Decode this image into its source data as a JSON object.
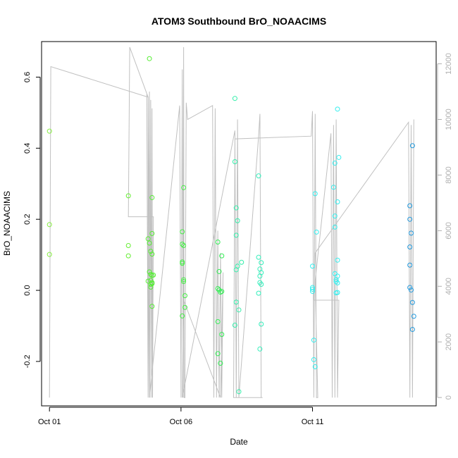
{
  "chart_data": {
    "type": "scatter",
    "title": "ATOM3 Southbound BrO_NOAACIMS",
    "xlabel": "Date",
    "ylabel": "BrO_NOAACIMS",
    "xlim": [
      -0.3,
      14.7
    ],
    "ylim": [
      -0.325,
      0.7
    ],
    "y_ticks": [
      -0.2,
      0.0,
      0.2,
      0.4,
      0.6
    ],
    "y_tick_labels": [
      "-0.2",
      "0.0",
      "0.2",
      "0.4",
      "0.6"
    ],
    "x_ticks": [
      0,
      5,
      10
    ],
    "x_tick_labels": [
      "Oct 01",
      "Oct 06",
      "Oct 11"
    ],
    "right_axis": {
      "ylim": [
        -300,
        12800
      ],
      "ticks": [
        0,
        2000,
        4000,
        6000,
        8000,
        10000,
        12000
      ],
      "tick_labels": [
        "0",
        "2000",
        "4000",
        "6000",
        "8000",
        "10000",
        "12000"
      ],
      "color": "#b0b0b0"
    },
    "points": [
      {
        "x": 0.0,
        "y": 0.448,
        "color": "#88ee44"
      },
      {
        "x": 0.0,
        "y": 0.185,
        "color": "#88ee44"
      },
      {
        "x": 0.0,
        "y": 0.101,
        "color": "#88ee44"
      },
      {
        "x": 3.0,
        "y": 0.266,
        "color": "#66ee33"
      },
      {
        "x": 3.0,
        "y": 0.126,
        "color": "#66ee33"
      },
      {
        "x": 3.0,
        "y": 0.097,
        "color": "#66ee33"
      },
      {
        "x": 3.8,
        "y": 0.652,
        "color": "#55ee33"
      },
      {
        "x": 3.75,
        "y": 0.145,
        "color": "#55ee33"
      },
      {
        "x": 3.8,
        "y": 0.133,
        "color": "#55ee33"
      },
      {
        "x": 3.85,
        "y": 0.11,
        "color": "#55ee33"
      },
      {
        "x": 3.9,
        "y": 0.102,
        "color": "#55ee33"
      },
      {
        "x": 3.9,
        "y": 0.261,
        "color": "#55ee33"
      },
      {
        "x": 3.9,
        "y": 0.16,
        "color": "#55ee33"
      },
      {
        "x": 3.8,
        "y": 0.052,
        "color": "#55ee33"
      },
      {
        "x": 3.85,
        "y": 0.045,
        "color": "#55ee33"
      },
      {
        "x": 3.9,
        "y": 0.042,
        "color": "#55ee33"
      },
      {
        "x": 3.95,
        "y": 0.043,
        "color": "#55ee33"
      },
      {
        "x": 3.75,
        "y": 0.026,
        "color": "#55ee33"
      },
      {
        "x": 3.85,
        "y": 0.028,
        "color": "#55ee33"
      },
      {
        "x": 3.9,
        "y": 0.022,
        "color": "#55ee33"
      },
      {
        "x": 3.85,
        "y": 0.017,
        "color": "#55ee33"
      },
      {
        "x": 3.9,
        "y": 0.019,
        "color": "#55ee33"
      },
      {
        "x": 3.85,
        "y": 0.009,
        "color": "#55ee33"
      },
      {
        "x": 3.9,
        "y": -0.045,
        "color": "#55ee33"
      },
      {
        "x": 5.1,
        "y": 0.289,
        "color": "#44ee44"
      },
      {
        "x": 5.05,
        "y": 0.165,
        "color": "#44ee44"
      },
      {
        "x": 5.05,
        "y": 0.13,
        "color": "#44ee44"
      },
      {
        "x": 5.1,
        "y": 0.126,
        "color": "#44ee44"
      },
      {
        "x": 5.05,
        "y": 0.08,
        "color": "#44ee44"
      },
      {
        "x": 5.05,
        "y": 0.076,
        "color": "#44ee44"
      },
      {
        "x": 5.1,
        "y": 0.03,
        "color": "#44ee44"
      },
      {
        "x": 5.1,
        "y": 0.025,
        "color": "#44ee44"
      },
      {
        "x": 5.15,
        "y": -0.015,
        "color": "#44ee44"
      },
      {
        "x": 5.15,
        "y": -0.048,
        "color": "#44ee44"
      },
      {
        "x": 5.05,
        "y": -0.072,
        "color": "#44ee44"
      },
      {
        "x": 6.4,
        "y": 0.136,
        "color": "#33ee55"
      },
      {
        "x": 6.55,
        "y": 0.097,
        "color": "#33ee55"
      },
      {
        "x": 6.45,
        "y": 0.053,
        "color": "#33ee55"
      },
      {
        "x": 6.4,
        "y": 0.005,
        "color": "#33ee55"
      },
      {
        "x": 6.45,
        "y": 0.001,
        "color": "#33ee55"
      },
      {
        "x": 6.5,
        "y": -0.005,
        "color": "#33ee55"
      },
      {
        "x": 6.55,
        "y": -0.003,
        "color": "#33ee55"
      },
      {
        "x": 6.4,
        "y": -0.088,
        "color": "#33ee55"
      },
      {
        "x": 6.55,
        "y": -0.124,
        "color": "#33ee55"
      },
      {
        "x": 6.4,
        "y": -0.178,
        "color": "#33ee55"
      },
      {
        "x": 6.5,
        "y": -0.205,
        "color": "#33ee55"
      },
      {
        "x": 7.05,
        "y": 0.54,
        "color": "#33eeaa"
      },
      {
        "x": 7.05,
        "y": 0.362,
        "color": "#33eeaa"
      },
      {
        "x": 7.1,
        "y": 0.232,
        "color": "#33eeaa"
      },
      {
        "x": 7.15,
        "y": 0.196,
        "color": "#33eeaa"
      },
      {
        "x": 7.1,
        "y": 0.155,
        "color": "#33eeaa"
      },
      {
        "x": 7.3,
        "y": 0.079,
        "color": "#33eeaa"
      },
      {
        "x": 7.15,
        "y": 0.068,
        "color": "#33eeaa"
      },
      {
        "x": 7.1,
        "y": 0.058,
        "color": "#33eeaa"
      },
      {
        "x": 7.1,
        "y": -0.033,
        "color": "#33eeaa"
      },
      {
        "x": 7.2,
        "y": -0.055,
        "color": "#33eeaa"
      },
      {
        "x": 7.05,
        "y": -0.098,
        "color": "#33eeaa"
      },
      {
        "x": 7.2,
        "y": -0.285,
        "color": "#33eeaa"
      },
      {
        "x": 7.95,
        "y": 0.322,
        "color": "#33eebb"
      },
      {
        "x": 7.95,
        "y": 0.093,
        "color": "#33eebb"
      },
      {
        "x": 8.05,
        "y": 0.078,
        "color": "#33eebb"
      },
      {
        "x": 8.0,
        "y": 0.06,
        "color": "#33eebb"
      },
      {
        "x": 8.05,
        "y": 0.05,
        "color": "#33eebb"
      },
      {
        "x": 8.0,
        "y": 0.04,
        "color": "#33eebb"
      },
      {
        "x": 8.0,
        "y": 0.022,
        "color": "#33eebb"
      },
      {
        "x": 8.05,
        "y": 0.017,
        "color": "#33eebb"
      },
      {
        "x": 7.95,
        "y": -0.008,
        "color": "#33eebb"
      },
      {
        "x": 8.05,
        "y": -0.095,
        "color": "#33eebb"
      },
      {
        "x": 8.0,
        "y": -0.165,
        "color": "#33eebb"
      },
      {
        "x": 10.1,
        "y": 0.272,
        "color": "#33eeee"
      },
      {
        "x": 10.15,
        "y": 0.164,
        "color": "#33eeee"
      },
      {
        "x": 10.0,
        "y": 0.068,
        "color": "#33eeee"
      },
      {
        "x": 10.0,
        "y": 0.008,
        "color": "#33eeee"
      },
      {
        "x": 10.0,
        "y": 0.003,
        "color": "#33eeee"
      },
      {
        "x": 10.0,
        "y": -0.003,
        "color": "#33eeee"
      },
      {
        "x": 10.05,
        "y": -0.14,
        "color": "#33eeee"
      },
      {
        "x": 10.05,
        "y": -0.195,
        "color": "#33eeee"
      },
      {
        "x": 10.1,
        "y": -0.215,
        "color": "#33eeee"
      },
      {
        "x": 10.95,
        "y": 0.51,
        "color": "#33eeee"
      },
      {
        "x": 11.0,
        "y": 0.374,
        "color": "#33eeee"
      },
      {
        "x": 10.85,
        "y": 0.358,
        "color": "#33eeee"
      },
      {
        "x": 10.8,
        "y": 0.29,
        "color": "#33eeee"
      },
      {
        "x": 10.95,
        "y": 0.249,
        "color": "#33eeee"
      },
      {
        "x": 10.85,
        "y": 0.209,
        "color": "#33eeee"
      },
      {
        "x": 10.85,
        "y": 0.178,
        "color": "#33eeee"
      },
      {
        "x": 10.95,
        "y": 0.085,
        "color": "#33eeee"
      },
      {
        "x": 10.85,
        "y": 0.047,
        "color": "#33eeee"
      },
      {
        "x": 10.95,
        "y": 0.04,
        "color": "#33eeee"
      },
      {
        "x": 10.9,
        "y": 0.03,
        "color": "#33eeee"
      },
      {
        "x": 10.9,
        "y": 0.025,
        "color": "#33eeee"
      },
      {
        "x": 10.95,
        "y": 0.021,
        "color": "#33eeee"
      },
      {
        "x": 10.9,
        "y": -0.007,
        "color": "#33eeee"
      },
      {
        "x": 10.95,
        "y": -0.006,
        "color": "#33eeee"
      },
      {
        "x": 13.8,
        "y": 0.407,
        "color": "#2299dd"
      },
      {
        "x": 13.7,
        "y": 0.238,
        "color": "#2299dd"
      },
      {
        "x": 13.7,
        "y": 0.2,
        "color": "#2299dd"
      },
      {
        "x": 13.75,
        "y": 0.161,
        "color": "#2299dd"
      },
      {
        "x": 13.7,
        "y": 0.122,
        "color": "#2299dd"
      },
      {
        "x": 13.7,
        "y": 0.071,
        "color": "#2299dd"
      },
      {
        "x": 13.7,
        "y": 0.008,
        "color": "#2299dd"
      },
      {
        "x": 13.75,
        "y": 0.001,
        "color": "#2299dd"
      },
      {
        "x": 13.8,
        "y": -0.034,
        "color": "#2299dd"
      },
      {
        "x": 13.85,
        "y": -0.073,
        "color": "#2299dd"
      },
      {
        "x": 13.8,
        "y": -0.11,
        "color": "#2299dd"
      }
    ],
    "altitude_series": {
      "color": "#c0c0c0",
      "axis": "right",
      "x": [
        0,
        0.05,
        3.75,
        3.75,
        3.7,
        3.75,
        3.8,
        3.82,
        3.85,
        3.88,
        3.9,
        3.92,
        3.95,
        3.0,
        3.05,
        3.75,
        3.8,
        4.95,
        5.0,
        5.05,
        5.08,
        5.1,
        5.12,
        5.15,
        5.2,
        5.25,
        6.2,
        6.25,
        6.3,
        6.35,
        6.4,
        6.45,
        6.5,
        6.55,
        6.6,
        6.5,
        5.1,
        5.05,
        7.05,
        7.1,
        7.15,
        7.2,
        7.95,
        8.0,
        8.05,
        8.1,
        7.0,
        7.05,
        9.95,
        10.0,
        10.05,
        10.1,
        10.15,
        10.2,
        10.1,
        10.7,
        10.75,
        10.8,
        10.85,
        10.9,
        10.95,
        11.0,
        10.05,
        10.1,
        13.65,
        13.7,
        13.75,
        13.8,
        13.85
      ],
      "y": [
        0,
        11900,
        10800,
        0,
        10900,
        0,
        11000,
        0,
        10700,
        0,
        10400,
        0,
        6500,
        6500,
        12600,
        10800,
        0,
        10500,
        0,
        11800,
        0,
        12600,
        0,
        0,
        10600,
        10000,
        10500,
        0,
        10400,
        0,
        6000,
        0,
        5200,
        0,
        4500,
        0,
        3500,
        0,
        9600,
        0,
        10000,
        0,
        9400,
        10200,
        0,
        0,
        0,
        9300,
        9400,
        10300,
        0,
        10200,
        0,
        0,
        4200,
        9500,
        0,
        9800,
        0,
        10000,
        0,
        3500,
        3500,
        5200,
        9900,
        0,
        9800,
        0,
        10000
      ]
    }
  }
}
